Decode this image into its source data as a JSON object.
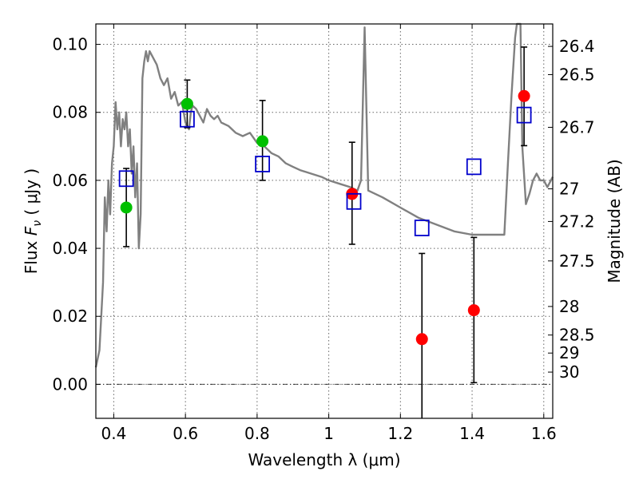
{
  "chart_data": {
    "type": "scatter",
    "title": "",
    "xlabel": "Wavelength  λ (μm)",
    "ylabel": "Flux  F_ν  ( μJy )",
    "y2label": "Magnitude (AB)",
    "xlim": [
      0.35,
      1.625
    ],
    "ylim": [
      -0.01,
      0.106
    ],
    "grid": true,
    "x_ticks": [
      0.4,
      0.6,
      0.8,
      1.0,
      1.2,
      1.4,
      1.6
    ],
    "x_tick_labels": [
      "0.4",
      "0.6",
      "0.8",
      "1",
      "1.2",
      "1.4",
      "1.6"
    ],
    "y_ticks": [
      0.0,
      0.02,
      0.04,
      0.06,
      0.08,
      0.1
    ],
    "y_tick_labels": [
      "0.00",
      "0.02",
      "0.04",
      "0.06",
      "0.08",
      "0.10"
    ],
    "y2_ticks": [
      {
        "label": "26.4",
        "flux": 0.0994
      },
      {
        "label": "26.5",
        "flux": 0.0911
      },
      {
        "label": "26.7",
        "flux": 0.0756
      },
      {
        "label": "27",
        "flux": 0.0575
      },
      {
        "label": "27.2",
        "flux": 0.0479
      },
      {
        "label": "27.5",
        "flux": 0.0363
      },
      {
        "label": "28",
        "flux": 0.0229
      },
      {
        "label": "28.5",
        "flux": 0.0145
      },
      {
        "label": "29",
        "flux": 0.0092
      },
      {
        "label": "30",
        "flux": 0.0036
      }
    ],
    "series": [
      {
        "kind": "line",
        "color": "#808080",
        "x": [
          0.35,
          0.36,
          0.37,
          0.375,
          0.38,
          0.385,
          0.39,
          0.395,
          0.4,
          0.405,
          0.41,
          0.415,
          0.42,
          0.425,
          0.43,
          0.435,
          0.44,
          0.445,
          0.45,
          0.455,
          0.46,
          0.465,
          0.47,
          0.475,
          0.48,
          0.485,
          0.49,
          0.495,
          0.5,
          0.51,
          0.52,
          0.53,
          0.54,
          0.55,
          0.56,
          0.57,
          0.58,
          0.59,
          0.6,
          0.61,
          0.615,
          0.62,
          0.63,
          0.64,
          0.65,
          0.66,
          0.67,
          0.68,
          0.69,
          0.7,
          0.72,
          0.74,
          0.76,
          0.78,
          0.8,
          0.82,
          0.84,
          0.86,
          0.88,
          0.9,
          0.92,
          0.95,
          0.98,
          1.0,
          1.03,
          1.06,
          1.08,
          1.09,
          1.1,
          1.11,
          1.15,
          1.2,
          1.25,
          1.3,
          1.35,
          1.4,
          1.45,
          1.49,
          1.5,
          1.51,
          1.52,
          1.525,
          1.53,
          1.535,
          1.54,
          1.55,
          1.56,
          1.57,
          1.58,
          1.59,
          1.6,
          1.61,
          1.625
        ],
        "y": [
          0.005,
          0.01,
          0.03,
          0.055,
          0.045,
          0.06,
          0.05,
          0.065,
          0.07,
          0.083,
          0.075,
          0.08,
          0.07,
          0.078,
          0.075,
          0.08,
          0.07,
          0.075,
          0.062,
          0.07,
          0.055,
          0.065,
          0.04,
          0.05,
          0.09,
          0.095,
          0.098,
          0.095,
          0.098,
          0.096,
          0.094,
          0.09,
          0.088,
          0.09,
          0.084,
          0.086,
          0.082,
          0.083,
          0.077,
          0.075,
          0.08,
          0.082,
          0.081,
          0.079,
          0.077,
          0.081,
          0.079,
          0.078,
          0.079,
          0.077,
          0.076,
          0.074,
          0.073,
          0.074,
          0.071,
          0.07,
          0.068,
          0.067,
          0.065,
          0.064,
          0.063,
          0.062,
          0.061,
          0.06,
          0.059,
          0.058,
          0.057,
          0.06,
          0.105,
          0.057,
          0.055,
          0.052,
          0.049,
          0.047,
          0.045,
          0.044,
          0.044,
          0.044,
          0.065,
          0.085,
          0.102,
          0.106,
          0.106,
          0.106,
          0.07,
          0.053,
          0.056,
          0.06,
          0.062,
          0.06,
          0.06,
          0.058,
          0.061
        ]
      },
      {
        "kind": "points",
        "marker": "filled-circle",
        "color": "#00c000",
        "x": [
          0.435,
          0.605,
          0.815
        ],
        "y": [
          0.052,
          0.0825,
          0.0715
        ]
      },
      {
        "kind": "points",
        "marker": "filled-circle",
        "color": "#ff0000",
        "x": [
          1.065,
          1.26,
          1.405,
          1.545
        ],
        "y": [
          0.056,
          0.0133,
          0.0218,
          0.0848
        ]
      },
      {
        "kind": "points",
        "marker": "open-square",
        "color": "#0000cc",
        "x": [
          0.435,
          0.605,
          0.815,
          1.07,
          1.26,
          1.405,
          1.545
        ],
        "y": [
          0.0605,
          0.078,
          0.0648,
          0.0538,
          0.046,
          0.064,
          0.0792
        ]
      }
    ],
    "error_bars": {
      "color": "#000000",
      "x": [
        0.435,
        0.605,
        0.815,
        1.065,
        1.26,
        1.405,
        1.545
      ],
      "low": [
        0.0405,
        0.0755,
        0.06,
        0.0412,
        -0.012,
        0.0005,
        0.0702
      ],
      "high": [
        0.0635,
        0.0895,
        0.0835,
        0.0712,
        0.0385,
        0.0432,
        0.0992
      ]
    }
  }
}
